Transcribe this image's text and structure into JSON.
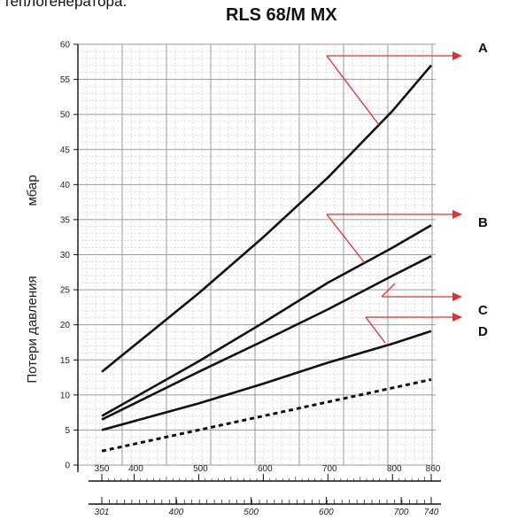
{
  "header_fragment": "теплогенератора.",
  "chart_data": {
    "type": "line",
    "title": "RLS 68/M MX",
    "ylabel_left": "Потери давления",
    "ylabel_unit": "мбар",
    "ylim": [
      0,
      60
    ],
    "y_ticks": [
      0,
      5,
      10,
      15,
      20,
      25,
      30,
      35,
      40,
      45,
      50,
      55,
      60
    ],
    "xlim": [
      350,
      860
    ],
    "x_ticks": [
      350,
      400,
      500,
      600,
      700,
      800,
      860
    ],
    "x2_ticks": [
      301,
      400,
      500,
      600,
      700,
      740
    ],
    "grid": true,
    "series": [
      {
        "name": "A",
        "style": "solid",
        "x": [
          350,
          500,
          600,
          700,
          800,
          860
        ],
        "y": [
          13.3,
          24.5,
          32.5,
          41.0,
          50.5,
          57.0
        ]
      },
      {
        "name": "B",
        "style": "solid",
        "x": [
          350,
          500,
          600,
          700,
          800,
          860
        ],
        "y": [
          7.0,
          14.8,
          20.3,
          26.0,
          31.0,
          34.2
        ]
      },
      {
        "name": "C",
        "style": "solid",
        "x": [
          350,
          500,
          600,
          700,
          800,
          860
        ],
        "y": [
          6.5,
          13.3,
          17.7,
          22.2,
          27.0,
          29.8
        ]
      },
      {
        "name": "D",
        "style": "solid",
        "x": [
          350,
          500,
          600,
          700,
          800,
          860
        ],
        "y": [
          5.0,
          8.8,
          11.6,
          14.6,
          17.3,
          19.1
        ]
      },
      {
        "name": "",
        "style": "dashed",
        "x": [
          350,
          860
        ],
        "y": [
          2.0,
          12.2
        ]
      }
    ],
    "legend_labels": [
      "A",
      "B",
      "C",
      "D"
    ],
    "colors": {
      "curve": "#111111",
      "arrow": "#e03030",
      "grid_major": "#9a9a9a",
      "grid_minor": "#c4c4c4"
    }
  }
}
